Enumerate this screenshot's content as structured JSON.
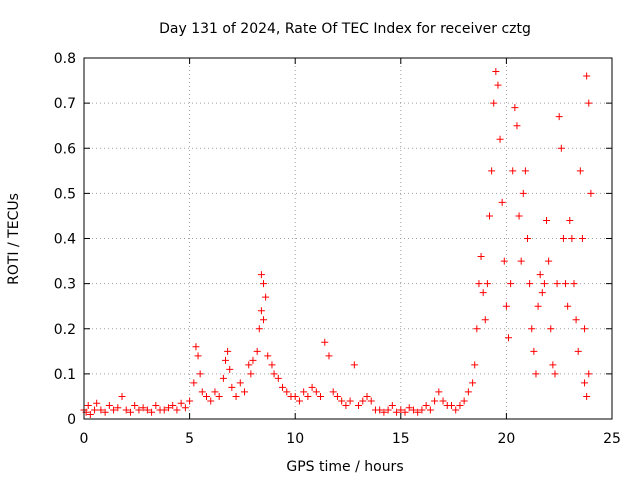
{
  "chart_data": {
    "type": "scatter",
    "title": "Day 131 of 2024, Rate Of TEC Index for receiver cztg",
    "xlabel": "GPS time / hours",
    "ylabel": "ROTI / TECUs",
    "xlim": [
      0,
      25
    ],
    "ylim": [
      0,
      0.8
    ],
    "xticks": [
      0,
      5,
      10,
      15,
      20,
      25
    ],
    "xtick_labels": [
      "0",
      "5",
      "10",
      "15",
      "20",
      "25"
    ],
    "yticks": [
      0,
      0.1,
      0.2,
      0.3,
      0.4,
      0.5,
      0.6,
      0.7,
      0.8
    ],
    "ytick_labels": [
      "0",
      "0.1",
      "0.2",
      "0.3",
      "0.4",
      "0.5",
      "0.6",
      "0.7",
      "0.8"
    ],
    "grid": true,
    "marker": "+",
    "color": "#ff0000",
    "series": [
      {
        "points": [
          [
            0.0,
            0.02
          ],
          [
            0.1,
            0.015
          ],
          [
            0.2,
            0.03
          ],
          [
            0.3,
            0.01
          ],
          [
            0.5,
            0.02
          ],
          [
            0.6,
            0.035
          ],
          [
            0.8,
            0.02
          ],
          [
            1.0,
            0.015
          ],
          [
            1.2,
            0.03
          ],
          [
            1.4,
            0.02
          ],
          [
            1.6,
            0.025
          ],
          [
            1.8,
            0.05
          ],
          [
            2.0,
            0.02
          ],
          [
            2.2,
            0.015
          ],
          [
            2.4,
            0.03
          ],
          [
            2.6,
            0.02
          ],
          [
            2.8,
            0.025
          ],
          [
            3.0,
            0.02
          ],
          [
            3.2,
            0.015
          ],
          [
            3.4,
            0.03
          ],
          [
            3.6,
            0.02
          ],
          [
            3.8,
            0.02
          ],
          [
            4.0,
            0.025
          ],
          [
            4.2,
            0.03
          ],
          [
            4.4,
            0.02
          ],
          [
            4.6,
            0.035
          ],
          [
            4.8,
            0.025
          ],
          [
            5.0,
            0.04
          ],
          [
            5.2,
            0.08
          ],
          [
            5.3,
            0.16
          ],
          [
            5.4,
            0.14
          ],
          [
            5.5,
            0.1
          ],
          [
            5.6,
            0.06
          ],
          [
            5.8,
            0.05
          ],
          [
            6.0,
            0.04
          ],
          [
            6.2,
            0.06
          ],
          [
            6.4,
            0.05
          ],
          [
            6.6,
            0.09
          ],
          [
            6.7,
            0.13
          ],
          [
            6.8,
            0.15
          ],
          [
            6.9,
            0.11
          ],
          [
            7.0,
            0.07
          ],
          [
            7.2,
            0.05
          ],
          [
            7.4,
            0.08
          ],
          [
            7.6,
            0.06
          ],
          [
            7.8,
            0.12
          ],
          [
            7.9,
            0.1
          ],
          [
            8.0,
            0.13
          ],
          [
            8.2,
            0.15
          ],
          [
            8.3,
            0.2
          ],
          [
            8.4,
            0.32
          ],
          [
            8.5,
            0.3
          ],
          [
            8.6,
            0.27
          ],
          [
            8.4,
            0.24
          ],
          [
            8.5,
            0.22
          ],
          [
            8.7,
            0.14
          ],
          [
            8.9,
            0.12
          ],
          [
            9.0,
            0.1
          ],
          [
            9.2,
            0.09
          ],
          [
            9.4,
            0.07
          ],
          [
            9.6,
            0.06
          ],
          [
            9.8,
            0.05
          ],
          [
            10.0,
            0.05
          ],
          [
            10.2,
            0.04
          ],
          [
            10.4,
            0.06
          ],
          [
            10.6,
            0.05
          ],
          [
            10.8,
            0.07
          ],
          [
            11.0,
            0.06
          ],
          [
            11.2,
            0.05
          ],
          [
            11.4,
            0.17
          ],
          [
            11.6,
            0.14
          ],
          [
            11.8,
            0.06
          ],
          [
            12.0,
            0.05
          ],
          [
            12.2,
            0.04
          ],
          [
            12.4,
            0.03
          ],
          [
            12.6,
            0.04
          ],
          [
            12.8,
            0.12
          ],
          [
            13.0,
            0.03
          ],
          [
            13.2,
            0.04
          ],
          [
            13.4,
            0.05
          ],
          [
            13.6,
            0.04
          ],
          [
            13.8,
            0.02
          ],
          [
            14.0,
            0.02
          ],
          [
            14.2,
            0.015
          ],
          [
            14.4,
            0.02
          ],
          [
            14.6,
            0.03
          ],
          [
            14.8,
            0.015
          ],
          [
            15.0,
            0.02
          ],
          [
            15.2,
            0.015
          ],
          [
            15.4,
            0.025
          ],
          [
            15.6,
            0.02
          ],
          [
            15.8,
            0.015
          ],
          [
            16.0,
            0.02
          ],
          [
            16.2,
            0.03
          ],
          [
            16.4,
            0.02
          ],
          [
            16.6,
            0.04
          ],
          [
            16.8,
            0.06
          ],
          [
            17.0,
            0.04
          ],
          [
            17.2,
            0.03
          ],
          [
            17.4,
            0.03
          ],
          [
            17.6,
            0.02
          ],
          [
            17.8,
            0.03
          ],
          [
            18.0,
            0.04
          ],
          [
            18.2,
            0.06
          ],
          [
            18.4,
            0.08
          ],
          [
            18.5,
            0.12
          ],
          [
            18.6,
            0.2
          ],
          [
            18.7,
            0.3
          ],
          [
            18.8,
            0.36
          ],
          [
            18.9,
            0.28
          ],
          [
            19.0,
            0.22
          ],
          [
            19.1,
            0.3
          ],
          [
            19.2,
            0.45
          ],
          [
            19.3,
            0.55
          ],
          [
            19.4,
            0.7
          ],
          [
            19.5,
            0.77
          ],
          [
            19.6,
            0.74
          ],
          [
            19.7,
            0.62
          ],
          [
            19.8,
            0.48
          ],
          [
            19.9,
            0.35
          ],
          [
            20.0,
            0.25
          ],
          [
            20.1,
            0.18
          ],
          [
            20.2,
            0.3
          ],
          [
            20.3,
            0.55
          ],
          [
            20.4,
            0.69
          ],
          [
            20.5,
            0.65
          ],
          [
            20.6,
            0.45
          ],
          [
            20.7,
            0.35
          ],
          [
            20.8,
            0.5
          ],
          [
            20.9,
            0.55
          ],
          [
            21.0,
            0.4
          ],
          [
            21.1,
            0.3
          ],
          [
            21.2,
            0.2
          ],
          [
            21.3,
            0.15
          ],
          [
            21.4,
            0.1
          ],
          [
            21.5,
            0.25
          ],
          [
            21.6,
            0.32
          ],
          [
            21.7,
            0.28
          ],
          [
            21.8,
            0.3
          ],
          [
            21.9,
            0.44
          ],
          [
            22.0,
            0.35
          ],
          [
            22.1,
            0.2
          ],
          [
            22.2,
            0.12
          ],
          [
            22.3,
            0.1
          ],
          [
            22.4,
            0.3
          ],
          [
            22.5,
            0.67
          ],
          [
            22.6,
            0.6
          ],
          [
            22.7,
            0.4
          ],
          [
            22.8,
            0.3
          ],
          [
            22.9,
            0.25
          ],
          [
            23.0,
            0.44
          ],
          [
            23.1,
            0.4
          ],
          [
            23.2,
            0.3
          ],
          [
            23.3,
            0.22
          ],
          [
            23.4,
            0.15
          ],
          [
            23.5,
            0.55
          ],
          [
            23.6,
            0.4
          ],
          [
            23.7,
            0.2
          ],
          [
            23.8,
            0.76
          ],
          [
            23.9,
            0.7
          ],
          [
            24.0,
            0.5
          ],
          [
            23.9,
            0.1
          ],
          [
            23.8,
            0.05
          ],
          [
            23.7,
            0.08
          ]
        ]
      }
    ]
  }
}
